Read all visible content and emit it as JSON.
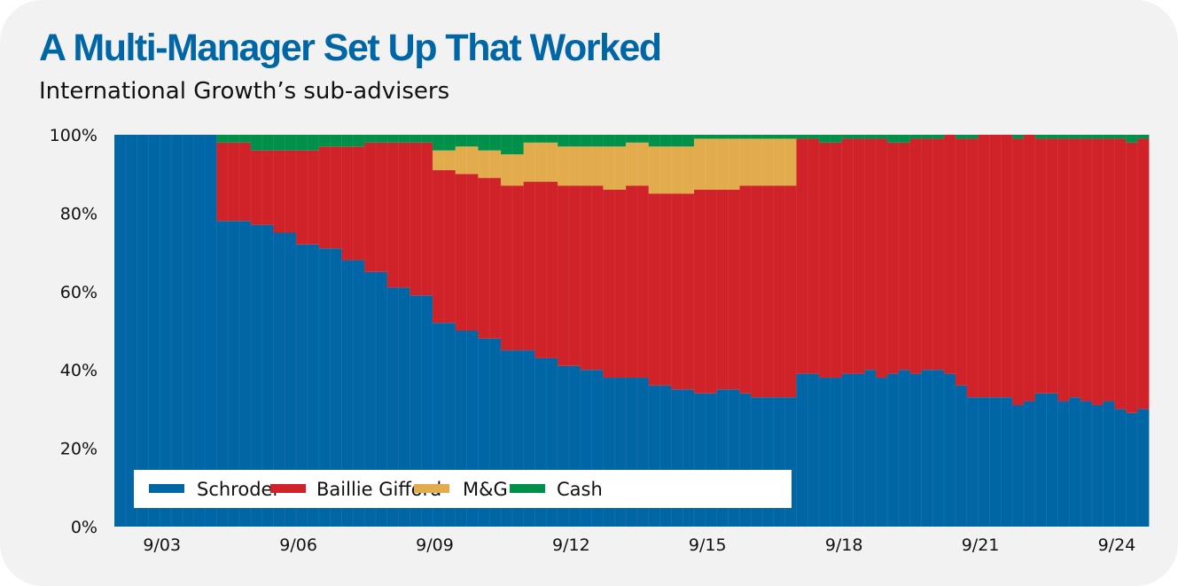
{
  "title": "A Multi-Manager Set Up That Worked",
  "subtitle": "International Growth’s sub-advisers",
  "chart_data": {
    "type": "bar",
    "stacked": true,
    "normalized": true,
    "title": "A Multi-Manager Set Up That Worked",
    "subtitle": "International Growth’s sub-advisers",
    "xlabel": "",
    "ylabel": "",
    "ylim": [
      0,
      100
    ],
    "y_ticks": [
      "0%",
      "20%",
      "40%",
      "60%",
      "80%",
      "100%"
    ],
    "y_tick_values": [
      0,
      20,
      40,
      60,
      80,
      100
    ],
    "x_ticks": [
      {
        "label": "9/03",
        "index": 4
      },
      {
        "label": "9/06",
        "index": 16
      },
      {
        "label": "9/09",
        "index": 28
      },
      {
        "label": "9/12",
        "index": 40
      },
      {
        "label": "9/15",
        "index": 52
      },
      {
        "label": "9/18",
        "index": 64
      },
      {
        "label": "9/21",
        "index": 76
      },
      {
        "label": "9/24",
        "index": 88
      }
    ],
    "grid": false,
    "legend_placement": "bottom-left",
    "series": [
      {
        "name": "Schroder",
        "color": "#0066a5",
        "values": [
          100,
          100,
          100,
          100,
          100,
          100,
          100,
          100,
          100,
          78,
          78,
          78,
          77,
          77,
          75,
          75,
          72,
          72,
          71,
          71,
          68,
          68,
          65,
          65,
          61,
          61,
          59,
          59,
          52,
          52,
          50,
          50,
          48,
          48,
          45,
          45,
          45,
          43,
          43,
          41,
          41,
          40,
          40,
          38,
          38,
          38,
          38,
          36,
          36,
          35,
          35,
          34,
          34,
          35,
          35,
          34,
          33,
          33,
          33,
          33,
          39,
          39,
          38,
          38,
          39,
          39,
          40,
          38,
          39,
          40,
          39,
          40,
          40,
          39,
          36,
          33,
          33,
          33,
          33,
          31,
          32,
          34,
          34,
          32,
          33,
          32,
          31,
          32,
          30,
          29,
          30
        ]
      },
      {
        "name": "Baillie Gifford",
        "color": "#cf2229",
        "values": [
          0,
          0,
          0,
          0,
          0,
          0,
          0,
          0,
          0,
          20,
          20,
          20,
          19,
          19,
          21,
          21,
          24,
          24,
          26,
          26,
          29,
          29,
          33,
          33,
          37,
          37,
          39,
          39,
          39,
          39,
          40,
          40,
          41,
          41,
          42,
          42,
          43,
          45,
          45,
          46,
          46,
          47,
          47,
          48,
          48,
          49,
          49,
          49,
          49,
          50,
          50,
          52,
          52,
          51,
          51,
          53,
          54,
          54,
          54,
          54,
          60,
          60,
          60,
          60,
          60,
          60,
          59,
          61,
          59,
          58,
          60,
          59,
          59,
          61,
          63,
          66,
          67,
          67,
          67,
          68,
          68,
          65,
          65,
          67,
          66,
          67,
          68,
          67,
          69,
          69,
          69
        ]
      },
      {
        "name": "M&G",
        "color": "#e2ac4d",
        "values": [
          0,
          0,
          0,
          0,
          0,
          0,
          0,
          0,
          0,
          0,
          0,
          0,
          0,
          0,
          0,
          0,
          0,
          0,
          0,
          0,
          0,
          0,
          0,
          0,
          0,
          0,
          0,
          0,
          5,
          5,
          7,
          7,
          7,
          7,
          8,
          8,
          10,
          10,
          10,
          10,
          10,
          10,
          10,
          11,
          11,
          11,
          11,
          12,
          12,
          12,
          12,
          13,
          13,
          13,
          13,
          12,
          12,
          12,
          12,
          12,
          0,
          0,
          0,
          0,
          0,
          0,
          0,
          0,
          0,
          0,
          0,
          0,
          0,
          0,
          0,
          0,
          0,
          0,
          0,
          0,
          0,
          0,
          0,
          0,
          0,
          0,
          0,
          0,
          0,
          0,
          0
        ]
      },
      {
        "name": "Cash",
        "color": "#00904a",
        "values": [
          0,
          0,
          0,
          0,
          0,
          0,
          0,
          0,
          0,
          2,
          2,
          2,
          4,
          4,
          4,
          4,
          4,
          4,
          3,
          3,
          3,
          3,
          2,
          2,
          2,
          2,
          2,
          2,
          4,
          4,
          3,
          3,
          4,
          4,
          5,
          5,
          2,
          2,
          2,
          3,
          3,
          3,
          3,
          3,
          3,
          2,
          2,
          3,
          3,
          3,
          3,
          1,
          1,
          1,
          1,
          1,
          1,
          1,
          1,
          1,
          1,
          1,
          2,
          2,
          1,
          1,
          1,
          1,
          2,
          2,
          1,
          1,
          1,
          0,
          1,
          1,
          0,
          0,
          0,
          1,
          0,
          1,
          1,
          1,
          1,
          1,
          1,
          1,
          1,
          2,
          1
        ]
      }
    ]
  }
}
